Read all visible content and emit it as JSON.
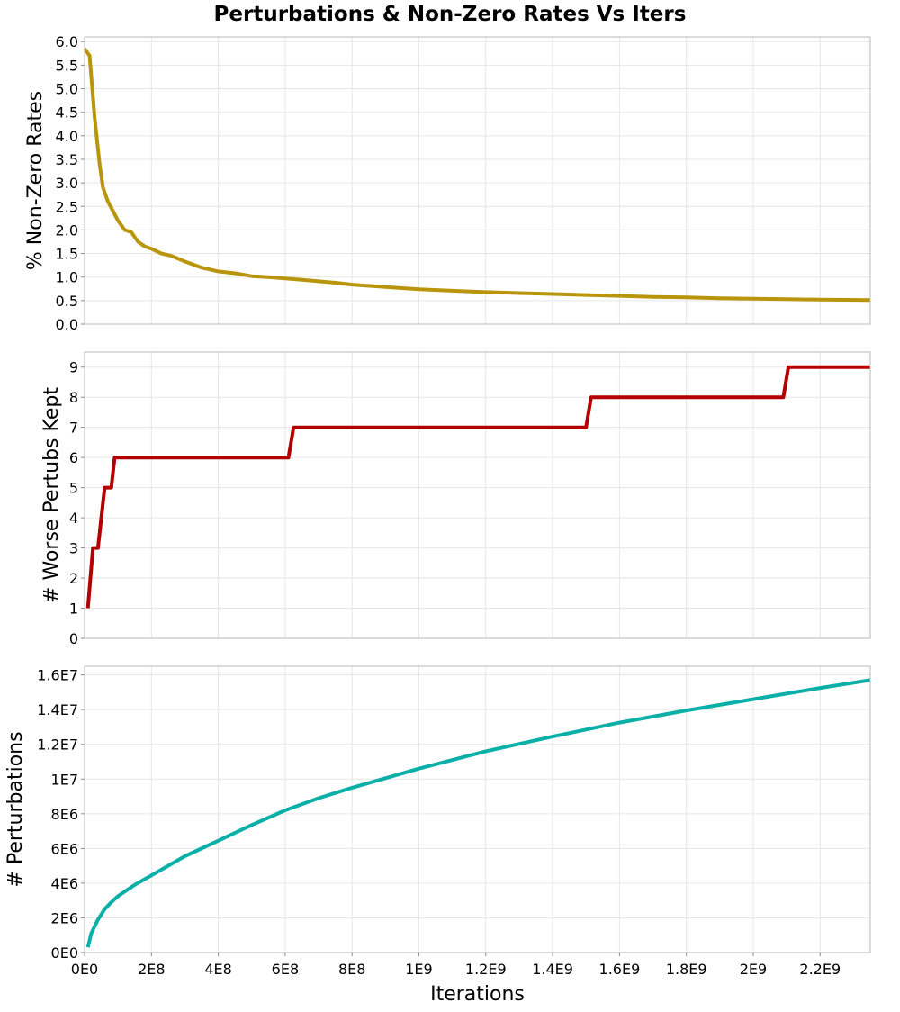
{
  "title": "Perturbations & Non-Zero Rates Vs Iters",
  "chart_data": [
    {
      "type": "line",
      "ylabel": "% Non-Zero Rates",
      "xlim": [
        0,
        2350000000
      ],
      "ylim": [
        0,
        6.1
      ],
      "yticks": [
        0,
        0.5,
        1.0,
        1.5,
        2.0,
        2.5,
        3.0,
        3.5,
        4.0,
        4.5,
        5.0,
        5.5,
        6.0
      ],
      "yticklabels": [
        "0.0",
        "0.5",
        "1.0",
        "1.5",
        "2.0",
        "2.5",
        "3.0",
        "3.5",
        "4.0",
        "4.5",
        "5.0",
        "5.5",
        "6.0"
      ],
      "grid": true,
      "color": "#b8950a",
      "series": [
        {
          "name": "% Non-Zero Rates",
          "x": [
            0,
            15000000,
            30000000,
            45000000,
            55000000,
            70000000,
            85000000,
            100000000,
            120000000,
            140000000,
            160000000,
            180000000,
            200000000,
            230000000,
            260000000,
            300000000,
            350000000,
            400000000,
            450000000,
            500000000,
            550000000,
            600000000,
            650000000,
            700000000,
            750000000,
            800000000,
            900000000,
            1000000000,
            1100000000,
            1200000000,
            1300000000,
            1400000000,
            1500000000,
            1600000000,
            1700000000,
            1800000000,
            1900000000,
            2000000000,
            2100000000,
            2200000000,
            2350000000
          ],
          "y": [
            5.85,
            5.7,
            4.4,
            3.4,
            2.9,
            2.6,
            2.4,
            2.2,
            2.0,
            1.95,
            1.75,
            1.65,
            1.6,
            1.5,
            1.45,
            1.33,
            1.2,
            1.12,
            1.08,
            1.02,
            1.0,
            0.97,
            0.94,
            0.91,
            0.88,
            0.84,
            0.79,
            0.74,
            0.71,
            0.68,
            0.66,
            0.64,
            0.62,
            0.6,
            0.58,
            0.57,
            0.55,
            0.54,
            0.53,
            0.52,
            0.51
          ]
        }
      ]
    },
    {
      "type": "line",
      "ylabel": "# Worse Pertubs Kept",
      "xlim": [
        0,
        2350000000
      ],
      "ylim": [
        0,
        9.5
      ],
      "yticks": [
        0,
        1,
        2,
        3,
        4,
        5,
        6,
        7,
        8,
        9
      ],
      "yticklabels": [
        "0",
        "1",
        "2",
        "3",
        "4",
        "5",
        "6",
        "7",
        "8",
        "9"
      ],
      "grid": true,
      "color": "#b30000",
      "series": [
        {
          "name": "# Worse Pertubs Kept",
          "x": [
            10000000,
            25000000,
            40000000,
            60000000,
            80000000,
            90000000,
            610000000,
            625000000,
            1500000000,
            1515000000,
            2090000000,
            2105000000,
            2350000000
          ],
          "y": [
            1,
            3,
            3,
            5,
            5,
            6,
            6,
            7,
            7,
            8,
            8,
            9,
            9
          ]
        }
      ]
    },
    {
      "type": "line",
      "ylabel": "# Perturbations",
      "xlabel": "Iterations",
      "xlim": [
        0,
        2350000000
      ],
      "ylim": [
        0,
        16500000
      ],
      "yticks": [
        0,
        2000000,
        4000000,
        6000000,
        8000000,
        10000000,
        12000000,
        14000000,
        16000000
      ],
      "yticklabels": [
        "0E0",
        "2E6",
        "4E6",
        "6E6",
        "8E6",
        "1E7",
        "1.2E7",
        "1.4E7",
        "1.6E7"
      ],
      "xticks": [
        0,
        200000000,
        400000000,
        600000000,
        800000000,
        1000000000,
        1200000000,
        1400000000,
        1600000000,
        1800000000,
        2000000000,
        2200000000
      ],
      "xticklabels": [
        "0E0",
        "2E8",
        "4E8",
        "6E8",
        "8E8",
        "1E9",
        "1.2E9",
        "1.4E9",
        "1.6E9",
        "1.8E9",
        "2E9",
        "2.2E9"
      ],
      "grid": true,
      "color": "#0aafa8",
      "series": [
        {
          "name": "# Perturbations",
          "x": [
            10000000,
            20000000,
            40000000,
            60000000,
            80000000,
            100000000,
            150000000,
            200000000,
            300000000,
            400000000,
            500000000,
            600000000,
            700000000,
            800000000,
            900000000,
            1000000000,
            1200000000,
            1400000000,
            1600000000,
            1800000000,
            2000000000,
            2200000000,
            2350000000
          ],
          "y": [
            300000,
            1100000,
            1900000,
            2500000,
            2900000,
            3250000,
            3900000,
            4450000,
            5550000,
            6450000,
            7350000,
            8200000,
            8900000,
            9500000,
            10050000,
            10600000,
            11600000,
            12450000,
            13250000,
            13950000,
            14600000,
            15250000,
            15700000
          ]
        }
      ]
    }
  ]
}
